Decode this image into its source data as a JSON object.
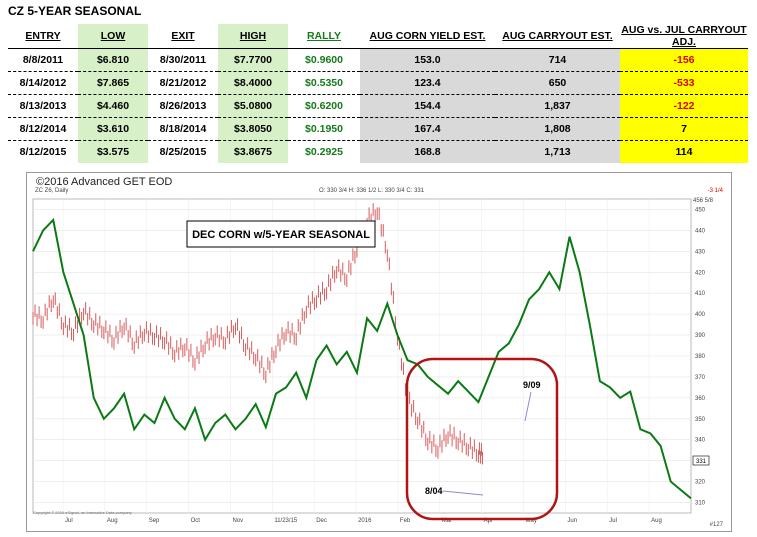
{
  "table": {
    "title": "CZ 5-YEAR SEASONAL",
    "headers": [
      "ENTRY",
      "LOW",
      "EXIT",
      "HIGH",
      "RALLY",
      "AUG CORN YIELD EST.",
      "AUG CARRYOUT EST.",
      "AUG vs. JUL CARRYOUT ADJ."
    ],
    "rows": [
      [
        "8/8/2011",
        "$6.810",
        "8/30/2011",
        "$7.7700",
        "$0.9600",
        "153.0",
        "714",
        "-156"
      ],
      [
        "8/14/2012",
        "$7.865",
        "8/21/2012",
        "$8.4000",
        "$0.5350",
        "123.4",
        "650",
        "-533"
      ],
      [
        "8/13/2013",
        "$4.460",
        "8/26/2013",
        "$5.0800",
        "$0.6200",
        "154.4",
        "1,837",
        "-122"
      ],
      [
        "8/12/2014",
        "$3.610",
        "8/18/2014",
        "$3.8050",
        "$0.1950",
        "167.4",
        "1,808",
        "7"
      ],
      [
        "8/12/2015",
        "$3.575",
        "8/25/2015",
        "$3.8675",
        "$0.2925",
        "168.8",
        "1,713",
        "114"
      ]
    ]
  },
  "chart": {
    "copyright": "©2016 Advanced GET EOD",
    "symbol": "ZC Z6, Daily",
    "ohlc": "O: 330 3/4  H: 336 1/2  L: 330 3/4  C: 331",
    "top_right_value": "-3 1/4",
    "box_label": "DEC CORN w/5-YEAR SEASONAL",
    "annotation_low": "8/04",
    "annotation_high": "9/09",
    "last_price": "331",
    "bottom_right": "#127",
    "footer": "Copyright © 2016 eSignal, an Interactive Data company"
  },
  "chart_data": {
    "type": "line",
    "months": [
      "Jul",
      "Aug",
      "Sep",
      "Oct",
      "Nov",
      "11/23/15",
      "Dec",
      "2016",
      "Feb",
      "Mar",
      "Apr",
      "May",
      "Jun",
      "Jul",
      "Aug"
    ],
    "ylim": [
      305,
      455
    ],
    "y_ticks": [
      310,
      320,
      330,
      340,
      350,
      360,
      370,
      380,
      390,
      400,
      410,
      420,
      430,
      440,
      450
    ],
    "y_top_label": "456 5/8",
    "price_series": {
      "name": "ZC Z6",
      "x": [
        0,
        10,
        20,
        30,
        40,
        50,
        60,
        70,
        80,
        90,
        100,
        110,
        120,
        130,
        140,
        150,
        160,
        170,
        180,
        190,
        200,
        210,
        220,
        230,
        240,
        250,
        260,
        270,
        280,
        290,
        300,
        310,
        320,
        330,
        340,
        350,
        360,
        370,
        380,
        390,
        400,
        410,
        420,
        430,
        440,
        445
      ],
      "y": [
        400,
        398,
        408,
        395,
        392,
        402,
        396,
        393,
        388,
        395,
        386,
        392,
        390,
        388,
        382,
        385,
        378,
        386,
        390,
        388,
        395,
        385,
        380,
        372,
        384,
        392,
        390,
        403,
        408,
        412,
        422,
        418,
        432,
        445,
        450,
        430,
        390,
        360,
        350,
        340,
        336,
        343,
        340,
        337,
        334,
        333
      ]
    },
    "seasonal_series": {
      "name": "5-Year Seasonal",
      "x": [
        0,
        10,
        20,
        30,
        40,
        50,
        60,
        70,
        80,
        90,
        100,
        110,
        120,
        130,
        140,
        150,
        160,
        170,
        180,
        190,
        200,
        210,
        220,
        230,
        240,
        250,
        260,
        270,
        280,
        290,
        300,
        310,
        320,
        330,
        340,
        350,
        360,
        370,
        380,
        390,
        400,
        410,
        420,
        430,
        440,
        450,
        460,
        470,
        480,
        490,
        500,
        510,
        520,
        530,
        540,
        550,
        560,
        570,
        580,
        590,
        600,
        610,
        620,
        630,
        640,
        650
      ],
      "y": [
        430,
        440,
        445,
        420,
        405,
        390,
        360,
        350,
        355,
        362,
        345,
        352,
        348,
        360,
        350,
        345,
        355,
        340,
        348,
        352,
        345,
        350,
        357,
        346,
        362,
        365,
        372,
        360,
        378,
        385,
        376,
        382,
        372,
        398,
        392,
        405,
        390,
        378,
        376,
        370,
        366,
        362,
        368,
        363,
        358,
        370,
        382,
        386,
        395,
        407,
        412,
        420,
        412,
        437,
        420,
        395,
        368,
        365,
        360,
        363,
        345,
        343,
        337,
        320,
        316,
        312
      ]
    },
    "grid": true
  }
}
